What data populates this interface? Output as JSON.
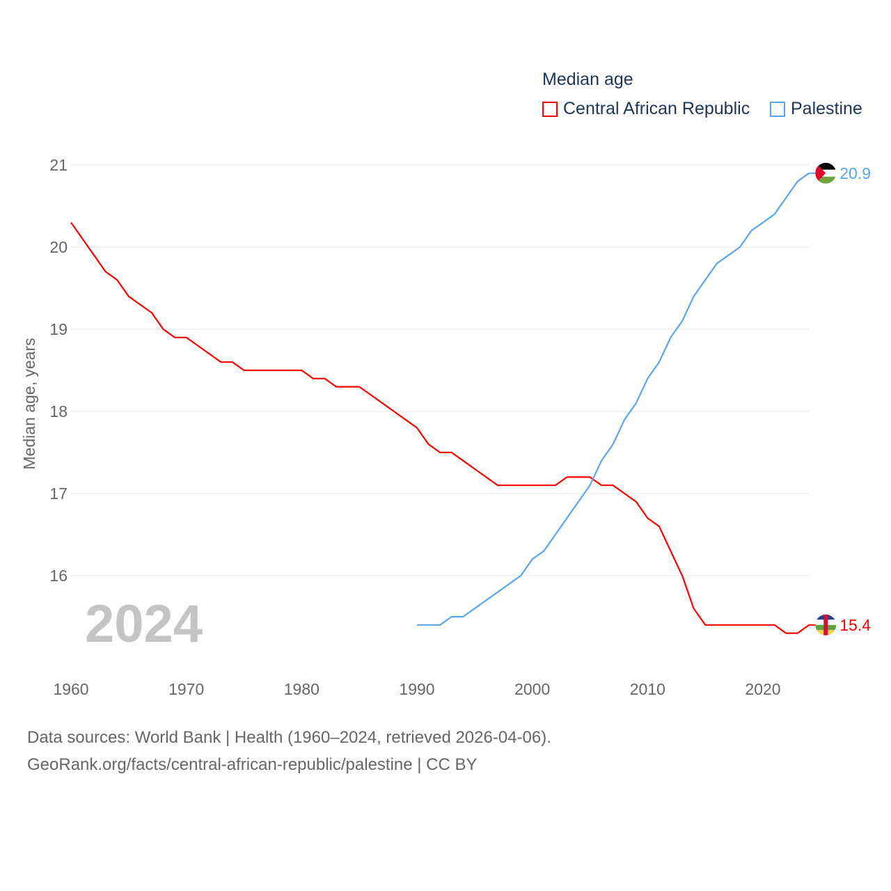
{
  "chart_data": {
    "type": "line",
    "title": "Median age",
    "xlabel": "",
    "ylabel": "Median age, years",
    "xlim": [
      1960,
      2024
    ],
    "ylim": [
      15,
      21
    ],
    "x_ticks": [
      "1960",
      "1970",
      "1980",
      "1990",
      "2000",
      "2010",
      "2020"
    ],
    "y_ticks": [
      "16",
      "17",
      "18",
      "19",
      "20",
      "21"
    ],
    "year_label": "2024",
    "legend_position": "top-right",
    "series": [
      {
        "name": "Central African Republic",
        "color": "#ff0000",
        "end_label": "15.4",
        "x": [
          1960,
          1961,
          1962,
          1963,
          1964,
          1965,
          1966,
          1967,
          1968,
          1969,
          1970,
          1971,
          1972,
          1973,
          1974,
          1975,
          1976,
          1977,
          1978,
          1979,
          1980,
          1981,
          1982,
          1983,
          1984,
          1985,
          1986,
          1987,
          1988,
          1989,
          1990,
          1991,
          1992,
          1993,
          1994,
          1995,
          1996,
          1997,
          1998,
          1999,
          2000,
          2001,
          2002,
          2003,
          2004,
          2005,
          2006,
          2007,
          2008,
          2009,
          2010,
          2011,
          2012,
          2013,
          2014,
          2015,
          2016,
          2017,
          2018,
          2019,
          2020,
          2021,
          2022,
          2023,
          2024
        ],
        "values": [
          20.3,
          20.1,
          19.9,
          19.7,
          19.6,
          19.4,
          19.3,
          19.2,
          19.0,
          18.9,
          18.9,
          18.8,
          18.7,
          18.6,
          18.6,
          18.5,
          18.5,
          18.5,
          18.5,
          18.5,
          18.5,
          18.4,
          18.4,
          18.3,
          18.3,
          18.3,
          18.2,
          18.1,
          18.0,
          17.9,
          17.8,
          17.6,
          17.5,
          17.5,
          17.4,
          17.3,
          17.2,
          17.1,
          17.1,
          17.1,
          17.1,
          17.1,
          17.1,
          17.2,
          17.2,
          17.2,
          17.1,
          17.1,
          17.0,
          16.9,
          16.7,
          16.6,
          16.3,
          16.0,
          15.6,
          15.4,
          15.4,
          15.4,
          15.4,
          15.4,
          15.4,
          15.4,
          15.3,
          15.3,
          15.4
        ]
      },
      {
        "name": "Palestine",
        "color": "#5ba4ec",
        "end_label": "20.9",
        "x": [
          1990,
          1991,
          1992,
          1993,
          1994,
          1995,
          1996,
          1997,
          1998,
          1999,
          2000,
          2001,
          2002,
          2003,
          2004,
          2005,
          2006,
          2007,
          2008,
          2009,
          2010,
          2011,
          2012,
          2013,
          2014,
          2015,
          2016,
          2017,
          2018,
          2019,
          2020,
          2021,
          2022,
          2023,
          2024
        ],
        "values": [
          15.4,
          15.4,
          15.4,
          15.5,
          15.5,
          15.6,
          15.7,
          15.8,
          15.9,
          16.0,
          16.2,
          16.3,
          16.5,
          16.7,
          16.9,
          17.1,
          17.4,
          17.6,
          17.9,
          18.1,
          18.4,
          18.6,
          18.9,
          19.1,
          19.4,
          19.6,
          19.8,
          19.9,
          20.0,
          20.2,
          20.3,
          20.4,
          20.6,
          20.8,
          20.9
        ]
      }
    ]
  },
  "footer": {
    "line1": "Data sources: World Bank | Health (1960–2024, retrieved 2026-04-06).",
    "line2": "GeoRank.org/facts/central-african-republic/palestine | CC BY"
  }
}
